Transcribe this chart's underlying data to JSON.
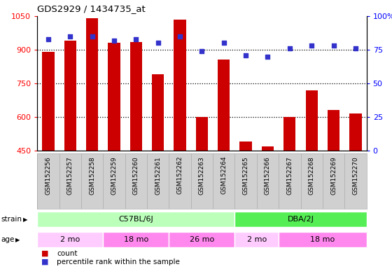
{
  "title": "GDS2929 / 1434735_at",
  "samples": [
    "GSM152256",
    "GSM152257",
    "GSM152258",
    "GSM152259",
    "GSM152260",
    "GSM152261",
    "GSM152262",
    "GSM152263",
    "GSM152264",
    "GSM152265",
    "GSM152266",
    "GSM152267",
    "GSM152268",
    "GSM152269",
    "GSM152270"
  ],
  "counts": [
    890,
    940,
    1040,
    930,
    935,
    790,
    1035,
    600,
    855,
    490,
    470,
    600,
    720,
    630,
    615
  ],
  "percentile_ranks": [
    83,
    85,
    85,
    82,
    83,
    80,
    85,
    74,
    80,
    71,
    70,
    76,
    78,
    78,
    76
  ],
  "ylim_left": [
    450,
    1050
  ],
  "ylim_right": [
    0,
    100
  ],
  "yticks_left": [
    450,
    600,
    750,
    900,
    1050
  ],
  "yticks_right": [
    0,
    25,
    50,
    75,
    100
  ],
  "bar_color": "#CC0000",
  "dot_color": "#3333CC",
  "bg_color": "#FFFFFF",
  "label_bg": "#D0D0D0",
  "label_border": "#AAAAAA",
  "strain_groups": [
    {
      "label": "C57BL/6J",
      "start": 0,
      "end": 9,
      "color": "#BBFFBB"
    },
    {
      "label": "DBA/2J",
      "start": 9,
      "end": 15,
      "color": "#55EE55"
    }
  ],
  "age_groups": [
    {
      "label": "2 mo",
      "start": 0,
      "end": 3,
      "color": "#FFCCFF"
    },
    {
      "label": "18 mo",
      "start": 3,
      "end": 6,
      "color": "#FF88EE"
    },
    {
      "label": "26 mo",
      "start": 6,
      "end": 9,
      "color": "#FF88EE"
    },
    {
      "label": "2 mo",
      "start": 9,
      "end": 11,
      "color": "#FFCCFF"
    },
    {
      "label": "18 mo",
      "start": 11,
      "end": 15,
      "color": "#FF88EE"
    }
  ],
  "legend_count_label": "count",
  "legend_pct_label": "percentile rank within the sample"
}
